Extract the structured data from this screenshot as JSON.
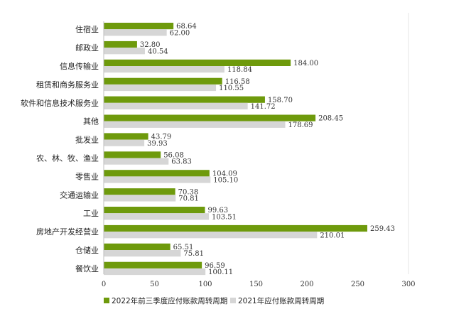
{
  "chart_data": {
    "type": "bar",
    "orientation": "horizontal",
    "categories": [
      "住宿业",
      "邮政业",
      "信息传输业",
      "租赁和商务服务业",
      "软件和信息技术服务业",
      "其他",
      "批发业",
      "农、林、牧、渔业",
      "零售业",
      "交通运输业",
      "工业",
      "房地产开发经营业",
      "仓储业",
      "餐饮业"
    ],
    "series": [
      {
        "name": "2022年前三季度应付账款周转周期",
        "color": "#6e9a0c",
        "values": [
          68.64,
          32.8,
          184.0,
          116.58,
          158.7,
          208.45,
          43.79,
          56.08,
          104.09,
          70.38,
          99.63,
          259.43,
          65.51,
          96.59
        ],
        "labels": [
          "68.64",
          "32.80",
          "184.00",
          "116.58",
          "158.70",
          "208.45",
          "43.79",
          "56.08",
          "104.09",
          "70.38",
          "99.63",
          "259.43",
          "65.51",
          "96.59"
        ]
      },
      {
        "name": "2021年应付账款周转周期",
        "color": "#d6d6d6",
        "values": [
          62.0,
          40.54,
          118.84,
          110.55,
          141.72,
          178.69,
          39.93,
          63.83,
          105.1,
          70.81,
          103.51,
          210.01,
          75.81,
          100.11
        ],
        "labels": [
          "62.00",
          "40.54",
          "118.84",
          "110.55",
          "141.72",
          "178.69",
          "39.93",
          "63.83",
          "105.10",
          "70.81",
          "103.51",
          "210.01",
          "75.81",
          "100.11"
        ]
      }
    ],
    "xlim": [
      0,
      300
    ],
    "xticks": [
      "0",
      "50",
      "100",
      "150",
      "200",
      "250",
      "300"
    ],
    "grid": false,
    "legend_position": "bottom"
  }
}
